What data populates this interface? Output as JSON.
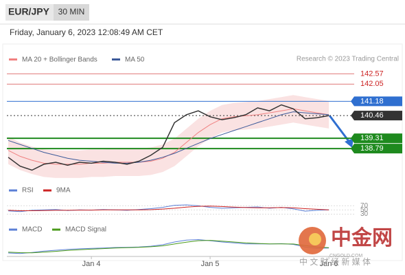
{
  "header": {
    "pair": "EUR/JPY",
    "timeframe": "30 MIN",
    "timestamp": "Friday, January 6, 2023 12:08:49 AM CET",
    "source": "Research © 2023 Trading Central"
  },
  "watermark": {
    "title": "中金网",
    "site": "CNGOLD.COM",
    "tagline": "中 文 财 经 新 媒 体"
  },
  "chart_data": [
    {
      "type": "line",
      "categories": [
        null,
        null,
        null,
        null,
        null,
        null,
        null,
        "Jan 4",
        null,
        null,
        null,
        null,
        null,
        null,
        null,
        null,
        null,
        "Jan 5",
        null,
        null,
        null,
        null,
        null,
        null,
        null,
        null,
        null,
        "Jan 6"
      ],
      "price": [
        138.35,
        137.9,
        137.7,
        138.0,
        138.1,
        137.95,
        138.1,
        138.05,
        138.15,
        138.1,
        138.0,
        138.15,
        138.45,
        138.85,
        140.1,
        140.5,
        140.7,
        140.4,
        140.25,
        140.35,
        140.5,
        140.85,
        140.7,
        141.0,
        140.8,
        140.3,
        140.35,
        140.46
      ],
      "price_color": "#333333",
      "series": [
        {
          "name": "MA 20 + Bollinger Bands",
          "color": "#f08080",
          "values": [
            138.7,
            138.4,
            138.2,
            138.05,
            138.0,
            138.0,
            138.0,
            138.05,
            138.05,
            138.1,
            138.1,
            138.1,
            138.15,
            138.3,
            138.6,
            139.1,
            139.6,
            140.0,
            140.3,
            140.4,
            140.45,
            140.5,
            140.6,
            140.7,
            140.8,
            140.7,
            140.6,
            140.5
          ]
        },
        {
          "name": "MA 50",
          "color": "#3c5a9a",
          "values": [
            139.2,
            139.0,
            138.8,
            138.6,
            138.45,
            138.3,
            138.2,
            138.15,
            138.1,
            138.05,
            138.05,
            138.1,
            138.2,
            138.35,
            138.55,
            138.8,
            139.05,
            139.3,
            139.5,
            139.7,
            139.9,
            140.1,
            140.3,
            140.5,
            140.65,
            140.6,
            140.55,
            140.5
          ]
        }
      ],
      "levels": [
        {
          "value": 142.57,
          "color": "#cc2222",
          "style": "resistance"
        },
        {
          "value": 142.05,
          "color": "#cc2222",
          "style": "resistance"
        },
        {
          "value": 141.18,
          "color": "#2f6fd0",
          "style": "pivot"
        },
        {
          "value": 140.46,
          "color": "#333333",
          "style": "last"
        },
        {
          "value": 139.31,
          "color": "#1e8a1e",
          "style": "support"
        },
        {
          "value": 138.79,
          "color": "#1e8a1e",
          "style": "support"
        }
      ],
      "ylim": [
        137.3,
        143.0
      ]
    },
    {
      "type": "line",
      "series": [
        {
          "name": "RSI",
          "color": "#5b7fd6",
          "values": [
            45,
            42,
            48,
            50,
            52,
            47,
            50,
            49,
            52,
            50,
            48,
            52,
            56,
            62,
            72,
            74,
            70,
            62,
            58,
            60,
            62,
            64,
            58,
            62,
            55,
            44,
            48,
            50
          ]
        },
        {
          "name": "9MA",
          "color": "#cc2222",
          "values": [
            48,
            46,
            46,
            47,
            48,
            48,
            49,
            49,
            50,
            50,
            50,
            50,
            51,
            54,
            58,
            63,
            67,
            68,
            66,
            63,
            61,
            60,
            60,
            61,
            60,
            56,
            53,
            50
          ]
        }
      ],
      "ylim": [
        20,
        100
      ],
      "yticks": [
        70,
        50,
        30
      ]
    },
    {
      "type": "line",
      "series": [
        {
          "name": "MACD",
          "color": "#5b7fd6",
          "values": [
            -0.45,
            -0.48,
            -0.42,
            -0.35,
            -0.3,
            -0.25,
            -0.22,
            -0.2,
            -0.18,
            -0.15,
            -0.14,
            -0.12,
            -0.08,
            0.0,
            0.15,
            0.25,
            0.28,
            0.22,
            0.15,
            0.1,
            0.05,
            0.05,
            0.04,
            0.06,
            0.02,
            -0.12,
            -0.2,
            -0.18
          ]
        },
        {
          "name": "MACD Signal",
          "color": "#4a9a1a",
          "values": [
            -0.4,
            -0.43,
            -0.44,
            -0.4,
            -0.36,
            -0.31,
            -0.27,
            -0.24,
            -0.21,
            -0.18,
            -0.16,
            -0.14,
            -0.11,
            -0.06,
            0.04,
            0.14,
            0.22,
            0.24,
            0.2,
            0.15,
            0.1,
            0.07,
            0.05,
            0.05,
            0.04,
            -0.04,
            -0.12,
            -0.16
          ]
        }
      ],
      "ylim": [
        -0.6,
        0.6
      ]
    }
  ]
}
